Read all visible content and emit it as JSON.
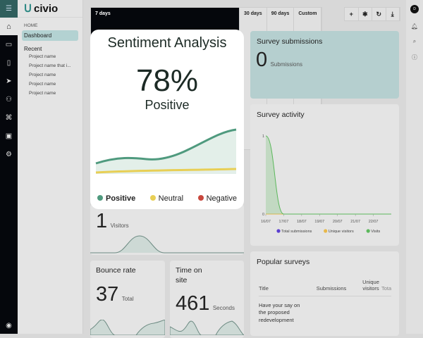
{
  "brand": "civio",
  "nav": {
    "home_label": "HOME",
    "dashboard": "Dashboard",
    "recent": "Recent",
    "projects": [
      "Project name",
      "Project name that i...",
      "Project name",
      "Project name",
      "Project name"
    ]
  },
  "ranges": [
    "7 days",
    "30 days",
    "90 days",
    "Custom"
  ],
  "active_range": "7 days",
  "user_initial": "D",
  "sentiment": {
    "title": "Sentiment Analysis",
    "percent": "78%",
    "label": "Positive",
    "legend": [
      {
        "label": "Positive",
        "color": "#4f9a7e"
      },
      {
        "label": "Neutral",
        "color": "#e8cf55"
      },
      {
        "label": "Negative",
        "color": "#c8473d"
      }
    ]
  },
  "submissions": {
    "title": "Survey submissions",
    "value": "0",
    "unit": "Submissions"
  },
  "visitors": {
    "value": "1",
    "unit": "Visitors"
  },
  "bounce": {
    "title": "Bounce rate",
    "value": "37",
    "unit": "Total"
  },
  "time": {
    "title": "Time on site",
    "value": "461",
    "unit": "Seconds"
  },
  "activity": {
    "title": "Survey activity"
  },
  "popular": {
    "title": "Popular surveys",
    "columns": [
      "Title",
      "Submissions",
      "Unique visitors",
      "Total visits"
    ],
    "rows": [
      {
        "title": "Have your say on the proposed redevelopment"
      }
    ]
  },
  "chart_data": {
    "type": "line",
    "title": "Survey activity",
    "x": [
      "16/07",
      "17/07",
      "18/07",
      "19/07",
      "20/07",
      "21/07",
      "22/07"
    ],
    "ylim": [
      0,
      1
    ],
    "yticks": [
      "0",
      "1"
    ],
    "series": [
      {
        "name": "Total submissions",
        "color": "#5b3fd0",
        "values": [
          0,
          0,
          0,
          0,
          0,
          0,
          0
        ]
      },
      {
        "name": "Unique visitors",
        "color": "#e8b84a",
        "values": [
          0,
          0,
          0,
          0,
          0,
          0,
          0
        ]
      },
      {
        "name": "Visits",
        "color": "#5cb85c",
        "values": [
          1,
          0,
          0,
          0,
          0,
          0,
          0
        ]
      }
    ]
  }
}
